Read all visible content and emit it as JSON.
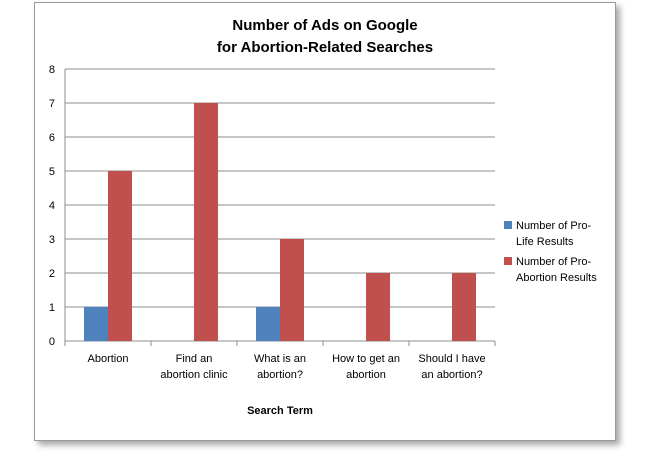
{
  "chart_data": {
    "type": "bar",
    "title_lines": [
      "Number of Ads on Google",
      "for Abortion-Related  Searches"
    ],
    "xlabel": "Search Term",
    "ylabel": "",
    "ylim": [
      0,
      8
    ],
    "yticks": [
      0,
      1,
      2,
      3,
      4,
      5,
      6,
      7,
      8
    ],
    "grid": true,
    "legend_position": "right",
    "categories": [
      [
        "Abortion"
      ],
      [
        "Find an",
        "abortion clinic"
      ],
      [
        "What is an",
        "abortion?"
      ],
      [
        "How to get an",
        "abortion"
      ],
      [
        "Should I have",
        "an abortion?"
      ]
    ],
    "series": [
      {
        "name_lines": [
          "Number of Pro-",
          "Life Results"
        ],
        "color": "#4f81bd",
        "values": [
          1,
          0,
          1,
          0,
          0
        ]
      },
      {
        "name_lines": [
          "Number of Pro-",
          "Abortion Results"
        ],
        "color": "#c0504d",
        "values": [
          5,
          7,
          3,
          2,
          2
        ]
      }
    ]
  }
}
